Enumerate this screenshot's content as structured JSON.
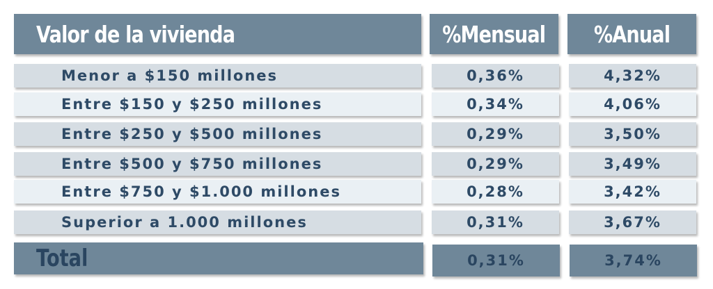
{
  "chart_data": {
    "type": "table",
    "columns": [
      "Valor de la vivienda",
      "%Mensual",
      "%Anual"
    ],
    "rows": [
      {
        "label": "Menor a $150 millones",
        "mensual": "0,36%",
        "anual": "4,32%"
      },
      {
        "label": "Entre $150 y $250 millones",
        "mensual": "0,34%",
        "anual": "4,06%"
      },
      {
        "label": "Entre $250 y $500 millones",
        "mensual": "0,29%",
        "anual": "3,50%"
      },
      {
        "label": "Entre $500 y $750 millones",
        "mensual": "0,29%",
        "anual": "3,49%"
      },
      {
        "label": "Entre $750 y $1.000 millones",
        "mensual": "0,28%",
        "anual": "3,42%"
      },
      {
        "label": "Superior a 1.000 millones",
        "mensual": "0,31%",
        "anual": "3,67%"
      }
    ],
    "total": {
      "label": "Total",
      "mensual": "0,31%",
      "anual": "3,74%"
    }
  },
  "colors": {
    "header_bg": "#6f8799",
    "row_dark": "#d6dde3",
    "row_light": "#eaf0f4",
    "text": "#2e4a66"
  }
}
